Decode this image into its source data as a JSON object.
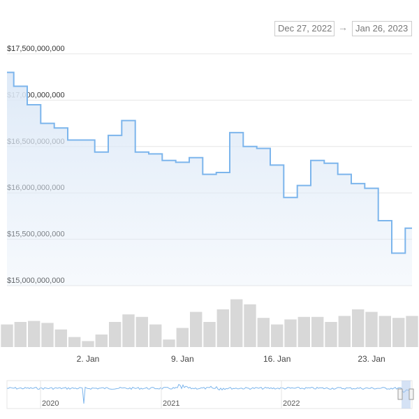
{
  "range_selector": {
    "from": "Dec 27, 2022",
    "arrow": "→",
    "to": "Jan 26, 2023"
  },
  "colors": {
    "line": "#7cb5ec",
    "area_top": "#dde9f7",
    "volume": "#d8d8d8",
    "navigator_mask": "#b3cbec"
  },
  "chart_data": {
    "type": "area",
    "title": "",
    "xlabel": "",
    "ylabel": "",
    "ylim": [
      15000000000,
      17500000000
    ],
    "x_ticks": [
      "2. Jan",
      "9. Jan",
      "16. Jan",
      "23. Jan"
    ],
    "y_ticks": [
      "$17,500,000,000",
      "$17,000,000,000",
      "$16,500,000,000",
      "$16,000,000,000",
      "$15,500,000,000",
      "$15,000,000,000"
    ],
    "x_range": [
      "2022-12-27",
      "2023-01-26"
    ],
    "series": [
      {
        "type": "area",
        "x": [
          "2022-12-27",
          "2022-12-28",
          "2022-12-29",
          "2022-12-30",
          "2022-12-31",
          "2023-01-01",
          "2023-01-02",
          "2023-01-03",
          "2023-01-04",
          "2023-01-05",
          "2023-01-06",
          "2023-01-07",
          "2023-01-08",
          "2023-01-09",
          "2023-01-10",
          "2023-01-11",
          "2023-01-12",
          "2023-01-13",
          "2023-01-14",
          "2023-01-15",
          "2023-01-16",
          "2023-01-17",
          "2023-01-18",
          "2023-01-19",
          "2023-01-20",
          "2023-01-21",
          "2023-01-22",
          "2023-01-23",
          "2023-01-24",
          "2023-01-25",
          "2023-01-26"
        ],
        "values": [
          17300000000,
          17150000000,
          16950000000,
          16750000000,
          16700000000,
          16570000000,
          16570000000,
          16440000000,
          16620000000,
          16780000000,
          16440000000,
          16420000000,
          16350000000,
          16330000000,
          16380000000,
          16200000000,
          16220000000,
          16650000000,
          16500000000,
          16480000000,
          16300000000,
          15950000000,
          16080000000,
          16350000000,
          16320000000,
          16200000000,
          16100000000,
          16050000000,
          15700000000,
          15350000000,
          15620000000
        ]
      },
      {
        "type": "volume",
        "x": [
          "2022-12-27",
          "2022-12-28",
          "2022-12-29",
          "2022-12-30",
          "2022-12-31",
          "2023-01-01",
          "2023-01-02",
          "2023-01-03",
          "2023-01-04",
          "2023-01-05",
          "2023-01-06",
          "2023-01-07",
          "2023-01-08",
          "2023-01-09",
          "2023-01-10",
          "2023-01-11",
          "2023-01-12",
          "2023-01-13",
          "2023-01-14",
          "2023-01-15",
          "2023-01-16",
          "2023-01-17",
          "2023-01-18",
          "2023-01-19",
          "2023-01-20",
          "2023-01-21",
          "2023-01-22",
          "2023-01-23",
          "2023-01-24",
          "2023-01-25",
          "2023-01-26"
        ],
        "values": [
          0.45,
          0.5,
          0.52,
          0.48,
          0.35,
          0.2,
          0.12,
          0.25,
          0.5,
          0.65,
          0.6,
          0.45,
          0.15,
          0.38,
          0.7,
          0.5,
          0.75,
          0.95,
          0.85,
          0.58,
          0.45,
          0.55,
          0.6,
          0.6,
          0.5,
          0.62,
          0.75,
          0.7,
          0.62,
          0.58,
          0.62
        ]
      }
    ],
    "navigator": {
      "ticks": [
        "2020",
        "2021",
        "2022"
      ]
    }
  }
}
